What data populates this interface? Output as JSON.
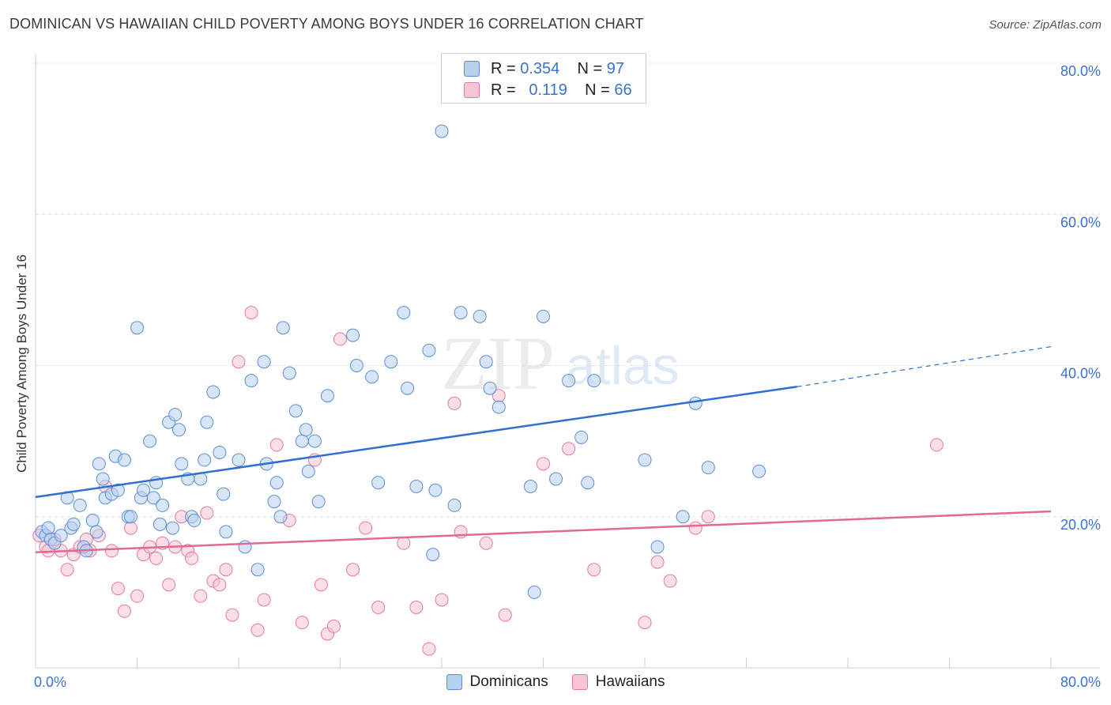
{
  "title": "DOMINICAN VS HAWAIIAN CHILD POVERTY AMONG BOYS UNDER 16 CORRELATION CHART",
  "source": "Source: ZipAtlas.com",
  "watermark": {
    "zip": "ZIP",
    "atlas": "atlas"
  },
  "legend_top": {
    "rows": [
      {
        "r_label": "R =",
        "r_value": "0.354",
        "n_label": "N =",
        "n_value": "97",
        "color": "#5b8fd6",
        "fill": "#b8d0f0"
      },
      {
        "r_label": "R =",
        "r_value": "0.119",
        "n_label": "N =",
        "n_value": "66",
        "color": "#e8799d",
        "fill": "#f7c5d5"
      }
    ]
  },
  "bottom_legend": {
    "items": [
      {
        "label": "Dominicans",
        "color": "#5b8fd6",
        "fill": "#b8d0f0"
      },
      {
        "label": "Hawaiians",
        "color": "#e8799d",
        "fill": "#f7c5d5"
      }
    ]
  },
  "chart_data": {
    "type": "scatter",
    "title": "DOMINICAN VS HAWAIIAN CHILD POVERTY AMONG BOYS UNDER 16 CORRELATION CHART",
    "xlabel": "",
    "ylabel": "Child Poverty Among Boys Under 16",
    "xlim": [
      0,
      80
    ],
    "ylim": [
      0,
      80
    ],
    "x_tick_labels": [
      "0.0%",
      "80.0%"
    ],
    "y_tick_labels": [
      "20.0%",
      "40.0%",
      "60.0%",
      "80.0%"
    ],
    "y_ticks": [
      20,
      40,
      60,
      80
    ],
    "grid": true,
    "legend_position": "top-center",
    "series": [
      {
        "name": "Dominicans",
        "color": "#5b8fd6",
        "fill": "#b8d0f0",
        "trend": {
          "x": [
            0,
            60
          ],
          "y": [
            22.6,
            37.2
          ],
          "dashed_to": [
            80,
            42.5
          ]
        },
        "points": [
          [
            0.5,
            18
          ],
          [
            0.8,
            17.5
          ],
          [
            1,
            18.5
          ],
          [
            1.2,
            17
          ],
          [
            1.5,
            16.5
          ],
          [
            2,
            17.5
          ],
          [
            2.5,
            22.5
          ],
          [
            2.8,
            18.5
          ],
          [
            3,
            19
          ],
          [
            3.5,
            21.5
          ],
          [
            3.8,
            16
          ],
          [
            4,
            15.5
          ],
          [
            4.5,
            19.5
          ],
          [
            4.8,
            18
          ],
          [
            5,
            27
          ],
          [
            5.3,
            25
          ],
          [
            5.5,
            22.5
          ],
          [
            6,
            23
          ],
          [
            6.3,
            28
          ],
          [
            6.5,
            23.5
          ],
          [
            7,
            27.5
          ],
          [
            7.3,
            20
          ],
          [
            7.5,
            20
          ],
          [
            8,
            45
          ],
          [
            8.3,
            22.5
          ],
          [
            8.5,
            23.5
          ],
          [
            9,
            30
          ],
          [
            9.3,
            22.5
          ],
          [
            9.5,
            24.5
          ],
          [
            9.8,
            19
          ],
          [
            10,
            21.5
          ],
          [
            10.5,
            32.5
          ],
          [
            10.8,
            18.5
          ],
          [
            11,
            33.5
          ],
          [
            11.3,
            31.5
          ],
          [
            11.5,
            27
          ],
          [
            12,
            25
          ],
          [
            12.3,
            20
          ],
          [
            12.5,
            19.5
          ],
          [
            13,
            25
          ],
          [
            13.3,
            27.5
          ],
          [
            13.5,
            32.5
          ],
          [
            14,
            36.5
          ],
          [
            14.5,
            28.5
          ],
          [
            14.8,
            23
          ],
          [
            15,
            18
          ],
          [
            16,
            27.5
          ],
          [
            16.5,
            16
          ],
          [
            17,
            38
          ],
          [
            17.5,
            13
          ],
          [
            18,
            40.5
          ],
          [
            18.2,
            27
          ],
          [
            18.8,
            22
          ],
          [
            19,
            24.5
          ],
          [
            19.3,
            20
          ],
          [
            19.5,
            45
          ],
          [
            20,
            39
          ],
          [
            20.5,
            34
          ],
          [
            21,
            30
          ],
          [
            21.3,
            31.5
          ],
          [
            21.5,
            26
          ],
          [
            22,
            30
          ],
          [
            22.3,
            22
          ],
          [
            23,
            36
          ],
          [
            25,
            44
          ],
          [
            25.3,
            40
          ],
          [
            26.5,
            38.5
          ],
          [
            27,
            24.5
          ],
          [
            28,
            40.5
          ],
          [
            29,
            47
          ],
          [
            29.3,
            37
          ],
          [
            30,
            24
          ],
          [
            31,
            42
          ],
          [
            31.3,
            15
          ],
          [
            31.5,
            23.5
          ],
          [
            32,
            71
          ],
          [
            33,
            21.5
          ],
          [
            33.5,
            47
          ],
          [
            35,
            46.5
          ],
          [
            35.5,
            40.5
          ],
          [
            35.8,
            37
          ],
          [
            36.5,
            34.5
          ],
          [
            39,
            24
          ],
          [
            39.3,
            10
          ],
          [
            40,
            46.5
          ],
          [
            41,
            25
          ],
          [
            42,
            38
          ],
          [
            43,
            30.5
          ],
          [
            43.5,
            24.5
          ],
          [
            44,
            38
          ],
          [
            48,
            27.5
          ],
          [
            49,
            16
          ],
          [
            51,
            20
          ],
          [
            52,
            35
          ],
          [
            53,
            26.5
          ],
          [
            57,
            26
          ]
        ]
      },
      {
        "name": "Hawaiians",
        "color": "#e8799d",
        "fill": "#f7c5d5",
        "trend": {
          "x": [
            0,
            80
          ],
          "y": [
            15.3,
            20.7
          ]
        },
        "points": [
          [
            0.3,
            17.5
          ],
          [
            0.8,
            16
          ],
          [
            1,
            15.5
          ],
          [
            1.5,
            17
          ],
          [
            2,
            15.5
          ],
          [
            2.5,
            13
          ],
          [
            3,
            15
          ],
          [
            3.5,
            16
          ],
          [
            4,
            17
          ],
          [
            4.3,
            15.5
          ],
          [
            5,
            17.5
          ],
          [
            5.5,
            24
          ],
          [
            6,
            15.5
          ],
          [
            6.5,
            10.5
          ],
          [
            7,
            7.5
          ],
          [
            7.5,
            18.5
          ],
          [
            8,
            9.5
          ],
          [
            8.5,
            15
          ],
          [
            9,
            16
          ],
          [
            9.5,
            14.5
          ],
          [
            10,
            16.5
          ],
          [
            10.5,
            11
          ],
          [
            11,
            16
          ],
          [
            11.5,
            20
          ],
          [
            12,
            15.5
          ],
          [
            12.3,
            14.5
          ],
          [
            13,
            9.5
          ],
          [
            13.5,
            20.5
          ],
          [
            14,
            11.5
          ],
          [
            14.5,
            11
          ],
          [
            15,
            13
          ],
          [
            15.5,
            7
          ],
          [
            16,
            40.5
          ],
          [
            17,
            47
          ],
          [
            17.5,
            5
          ],
          [
            18,
            9
          ],
          [
            19,
            29.5
          ],
          [
            20,
            19.5
          ],
          [
            21,
            6
          ],
          [
            22,
            27.5
          ],
          [
            22.5,
            11
          ],
          [
            23,
            4.5
          ],
          [
            23.5,
            5.5
          ],
          [
            24,
            43.5
          ],
          [
            25,
            13
          ],
          [
            26,
            18.5
          ],
          [
            27,
            8
          ],
          [
            29,
            16.5
          ],
          [
            30,
            8
          ],
          [
            31,
            2.5
          ],
          [
            32,
            9
          ],
          [
            33,
            35
          ],
          [
            33.5,
            18
          ],
          [
            35.5,
            16.5
          ],
          [
            36.5,
            36
          ],
          [
            37,
            7
          ],
          [
            40,
            27
          ],
          [
            42,
            29
          ],
          [
            44,
            13
          ],
          [
            48,
            6
          ],
          [
            49,
            14
          ],
          [
            50,
            11.5
          ],
          [
            52,
            18.5
          ],
          [
            53,
            20
          ],
          [
            71,
            29.5
          ]
        ]
      }
    ]
  }
}
